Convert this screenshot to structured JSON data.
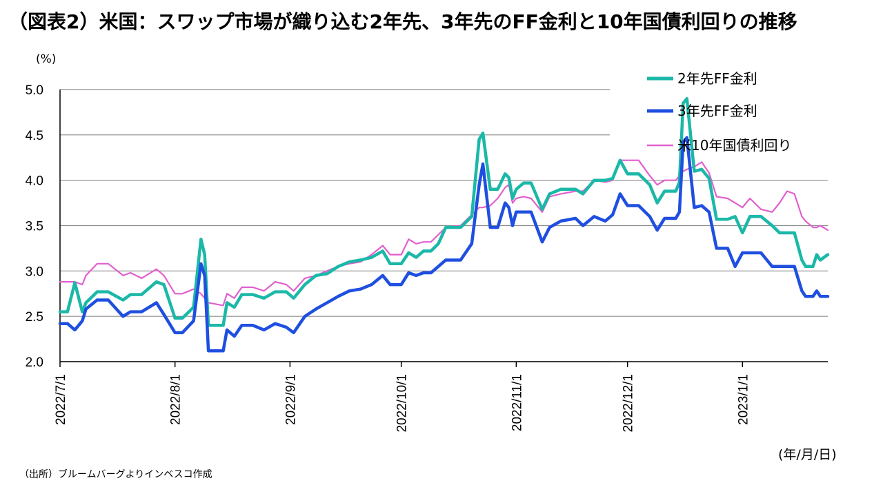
{
  "title": "（図表2）米国：スワップ市場が織り込む2年先、3年先のFF金利と10年国債利回りの推移",
  "y_unit": "(%)",
  "x_unit": "(年/月/日)",
  "source": "（出所）ブルームバーグよりインベスコ作成",
  "colors": {
    "series_2y": "#1bb8a8",
    "series_3y": "#1f4fe0",
    "series_10y": "#e25fcf",
    "grid": "#8c8c8c",
    "axis": "#000000"
  },
  "chart_data": {
    "type": "line",
    "x_start": "2022-07-01",
    "x_end": "2023-01-24",
    "ylim": [
      2.0,
      5.0
    ],
    "yticks": [
      "2.0",
      "2.5",
      "3.0",
      "3.5",
      "4.0",
      "4.5",
      "5.0"
    ],
    "xtick_labels": [
      "2022/7/1",
      "2022/8/1",
      "2022/9/1",
      "2022/10/1",
      "2022/11/1",
      "2022/12/1",
      "2023/1/1"
    ],
    "xticks": [
      "2022-07-01",
      "2022-08-01",
      "2022-09-01",
      "2022-10-01",
      "2022-11-01",
      "2022-12-01",
      "2023-01-01"
    ],
    "grid": true,
    "legend_position": "top-right",
    "series": [
      {
        "name": "2年先FF金利",
        "points": [
          [
            "2022-07-01",
            2.55
          ],
          [
            "2022-07-03",
            2.55
          ],
          [
            "2022-07-05",
            2.87
          ],
          [
            "2022-07-07",
            2.55
          ],
          [
            "2022-07-08",
            2.65
          ],
          [
            "2022-07-11",
            2.77
          ],
          [
            "2022-07-14",
            2.77
          ],
          [
            "2022-07-18",
            2.68
          ],
          [
            "2022-07-20",
            2.74
          ],
          [
            "2022-07-23",
            2.74
          ],
          [
            "2022-07-27",
            2.88
          ],
          [
            "2022-07-29",
            2.85
          ],
          [
            "2022-08-01",
            2.48
          ],
          [
            "2022-08-03",
            2.48
          ],
          [
            "2022-08-06",
            2.6
          ],
          [
            "2022-08-08",
            3.35
          ],
          [
            "2022-08-09",
            3.18
          ],
          [
            "2022-08-10",
            2.4
          ],
          [
            "2022-08-14",
            2.4
          ],
          [
            "2022-08-15",
            2.65
          ],
          [
            "2022-08-17",
            2.6
          ],
          [
            "2022-08-19",
            2.74
          ],
          [
            "2022-08-22",
            2.74
          ],
          [
            "2022-08-25",
            2.7
          ],
          [
            "2022-08-28",
            2.77
          ],
          [
            "2022-08-31",
            2.77
          ],
          [
            "2022-09-02",
            2.7
          ],
          [
            "2022-09-05",
            2.85
          ],
          [
            "2022-09-08",
            2.95
          ],
          [
            "2022-09-11",
            2.97
          ],
          [
            "2022-09-14",
            3.05
          ],
          [
            "2022-09-17",
            3.1
          ],
          [
            "2022-09-20",
            3.12
          ],
          [
            "2022-09-23",
            3.15
          ],
          [
            "2022-09-26",
            3.22
          ],
          [
            "2022-09-28",
            3.08
          ],
          [
            "2022-10-01",
            3.08
          ],
          [
            "2022-10-03",
            3.2
          ],
          [
            "2022-10-05",
            3.15
          ],
          [
            "2022-10-07",
            3.22
          ],
          [
            "2022-10-09",
            3.22
          ],
          [
            "2022-10-11",
            3.3
          ],
          [
            "2022-10-13",
            3.48
          ],
          [
            "2022-10-17",
            3.48
          ],
          [
            "2022-10-20",
            3.6
          ],
          [
            "2022-10-22",
            4.45
          ],
          [
            "2022-10-23",
            4.52
          ],
          [
            "2022-10-25",
            3.9
          ],
          [
            "2022-10-27",
            3.9
          ],
          [
            "2022-10-29",
            4.07
          ],
          [
            "2022-10-30",
            4.03
          ],
          [
            "2022-10-31",
            3.8
          ],
          [
            "2022-11-01",
            3.9
          ],
          [
            "2022-11-03",
            3.97
          ],
          [
            "2022-11-05",
            3.97
          ],
          [
            "2022-11-08",
            3.68
          ],
          [
            "2022-11-10",
            3.85
          ],
          [
            "2022-11-13",
            3.9
          ],
          [
            "2022-11-17",
            3.9
          ],
          [
            "2022-11-19",
            3.85
          ],
          [
            "2022-11-22",
            4.0
          ],
          [
            "2022-11-25",
            4.0
          ],
          [
            "2022-11-27",
            4.02
          ],
          [
            "2022-11-29",
            4.22
          ],
          [
            "2022-12-01",
            4.07
          ],
          [
            "2022-12-04",
            4.07
          ],
          [
            "2022-12-07",
            3.95
          ],
          [
            "2022-12-09",
            3.75
          ],
          [
            "2022-12-11",
            3.88
          ],
          [
            "2022-12-14",
            3.88
          ],
          [
            "2022-12-15",
            3.98
          ],
          [
            "2022-12-16",
            4.85
          ],
          [
            "2022-12-17",
            4.9
          ],
          [
            "2022-12-19",
            4.1
          ],
          [
            "2022-12-21",
            4.12
          ],
          [
            "2022-12-23",
            4.02
          ],
          [
            "2022-12-25",
            3.57
          ],
          [
            "2022-12-28",
            3.57
          ],
          [
            "2022-12-30",
            3.6
          ],
          [
            "2023-01-01",
            3.42
          ],
          [
            "2023-01-03",
            3.6
          ],
          [
            "2023-01-06",
            3.6
          ],
          [
            "2023-01-09",
            3.5
          ],
          [
            "2023-01-11",
            3.42
          ],
          [
            "2023-01-13",
            3.42
          ],
          [
            "2023-01-15",
            3.42
          ],
          [
            "2023-01-17",
            3.12
          ],
          [
            "2023-01-18",
            3.05
          ],
          [
            "2023-01-20",
            3.05
          ],
          [
            "2023-01-21",
            3.18
          ],
          [
            "2023-01-22",
            3.12
          ],
          [
            "2023-01-24",
            3.18
          ]
        ]
      },
      {
        "name": "3年先FF金利",
        "points": [
          [
            "2022-07-01",
            2.42
          ],
          [
            "2022-07-03",
            2.42
          ],
          [
            "2022-07-05",
            2.35
          ],
          [
            "2022-07-07",
            2.45
          ],
          [
            "2022-07-08",
            2.58
          ],
          [
            "2022-07-11",
            2.68
          ],
          [
            "2022-07-14",
            2.68
          ],
          [
            "2022-07-18",
            2.5
          ],
          [
            "2022-07-20",
            2.55
          ],
          [
            "2022-07-23",
            2.55
          ],
          [
            "2022-07-27",
            2.65
          ],
          [
            "2022-07-29",
            2.52
          ],
          [
            "2022-08-01",
            2.32
          ],
          [
            "2022-08-03",
            2.32
          ],
          [
            "2022-08-06",
            2.45
          ],
          [
            "2022-08-08",
            3.08
          ],
          [
            "2022-08-09",
            2.95
          ],
          [
            "2022-08-10",
            2.12
          ],
          [
            "2022-08-14",
            2.12
          ],
          [
            "2022-08-15",
            2.35
          ],
          [
            "2022-08-17",
            2.28
          ],
          [
            "2022-08-19",
            2.4
          ],
          [
            "2022-08-22",
            2.4
          ],
          [
            "2022-08-25",
            2.35
          ],
          [
            "2022-08-28",
            2.42
          ],
          [
            "2022-08-31",
            2.38
          ],
          [
            "2022-09-02",
            2.32
          ],
          [
            "2022-09-05",
            2.5
          ],
          [
            "2022-09-08",
            2.58
          ],
          [
            "2022-09-11",
            2.65
          ],
          [
            "2022-09-14",
            2.72
          ],
          [
            "2022-09-17",
            2.78
          ],
          [
            "2022-09-20",
            2.8
          ],
          [
            "2022-09-23",
            2.85
          ],
          [
            "2022-09-26",
            2.95
          ],
          [
            "2022-09-28",
            2.85
          ],
          [
            "2022-10-01",
            2.85
          ],
          [
            "2022-10-03",
            2.98
          ],
          [
            "2022-10-05",
            2.95
          ],
          [
            "2022-10-07",
            2.98
          ],
          [
            "2022-10-09",
            2.98
          ],
          [
            "2022-10-11",
            3.05
          ],
          [
            "2022-10-13",
            3.12
          ],
          [
            "2022-10-17",
            3.12
          ],
          [
            "2022-10-20",
            3.3
          ],
          [
            "2022-10-22",
            3.95
          ],
          [
            "2022-10-23",
            4.18
          ],
          [
            "2022-10-25",
            3.48
          ],
          [
            "2022-10-27",
            3.48
          ],
          [
            "2022-10-29",
            3.75
          ],
          [
            "2022-10-30",
            3.7
          ],
          [
            "2022-10-31",
            3.5
          ],
          [
            "2022-11-01",
            3.65
          ],
          [
            "2022-11-03",
            3.65
          ],
          [
            "2022-11-05",
            3.65
          ],
          [
            "2022-11-08",
            3.32
          ],
          [
            "2022-11-10",
            3.48
          ],
          [
            "2022-11-13",
            3.55
          ],
          [
            "2022-11-17",
            3.58
          ],
          [
            "2022-11-19",
            3.5
          ],
          [
            "2022-11-22",
            3.6
          ],
          [
            "2022-11-25",
            3.55
          ],
          [
            "2022-11-27",
            3.62
          ],
          [
            "2022-11-29",
            3.85
          ],
          [
            "2022-12-01",
            3.72
          ],
          [
            "2022-12-04",
            3.72
          ],
          [
            "2022-12-07",
            3.6
          ],
          [
            "2022-12-09",
            3.45
          ],
          [
            "2022-12-11",
            3.58
          ],
          [
            "2022-12-14",
            3.58
          ],
          [
            "2022-12-15",
            3.65
          ],
          [
            "2022-12-16",
            4.42
          ],
          [
            "2022-12-17",
            4.47
          ],
          [
            "2022-12-19",
            3.7
          ],
          [
            "2022-12-21",
            3.72
          ],
          [
            "2022-12-23",
            3.65
          ],
          [
            "2022-12-25",
            3.25
          ],
          [
            "2022-12-28",
            3.25
          ],
          [
            "2022-12-30",
            3.05
          ],
          [
            "2023-01-01",
            3.2
          ],
          [
            "2023-01-03",
            3.2
          ],
          [
            "2023-01-06",
            3.2
          ],
          [
            "2023-01-09",
            3.05
          ],
          [
            "2023-01-11",
            3.05
          ],
          [
            "2023-01-13",
            3.05
          ],
          [
            "2023-01-15",
            3.05
          ],
          [
            "2023-01-17",
            2.78
          ],
          [
            "2023-01-18",
            2.72
          ],
          [
            "2023-01-20",
            2.72
          ],
          [
            "2023-01-21",
            2.78
          ],
          [
            "2023-01-22",
            2.72
          ],
          [
            "2023-01-24",
            2.72
          ]
        ]
      },
      {
        "name": "米10年国債利回り",
        "points": [
          [
            "2022-07-01",
            2.88
          ],
          [
            "2022-07-03",
            2.88
          ],
          [
            "2022-07-05",
            2.88
          ],
          [
            "2022-07-07",
            2.85
          ],
          [
            "2022-07-08",
            2.95
          ],
          [
            "2022-07-11",
            3.08
          ],
          [
            "2022-07-14",
            3.08
          ],
          [
            "2022-07-18",
            2.95
          ],
          [
            "2022-07-20",
            2.98
          ],
          [
            "2022-07-23",
            2.92
          ],
          [
            "2022-07-27",
            3.02
          ],
          [
            "2022-07-29",
            2.95
          ],
          [
            "2022-08-01",
            2.75
          ],
          [
            "2022-08-03",
            2.75
          ],
          [
            "2022-08-06",
            2.8
          ],
          [
            "2022-08-08",
            2.75
          ],
          [
            "2022-08-09",
            2.7
          ],
          [
            "2022-08-10",
            2.65
          ],
          [
            "2022-08-14",
            2.62
          ],
          [
            "2022-08-15",
            2.75
          ],
          [
            "2022-08-17",
            2.7
          ],
          [
            "2022-08-19",
            2.82
          ],
          [
            "2022-08-22",
            2.82
          ],
          [
            "2022-08-25",
            2.78
          ],
          [
            "2022-08-28",
            2.88
          ],
          [
            "2022-08-31",
            2.85
          ],
          [
            "2022-09-02",
            2.78
          ],
          [
            "2022-09-05",
            2.92
          ],
          [
            "2022-09-08",
            2.95
          ],
          [
            "2022-09-11",
            3.0
          ],
          [
            "2022-09-14",
            3.05
          ],
          [
            "2022-09-17",
            3.08
          ],
          [
            "2022-09-20",
            3.1
          ],
          [
            "2022-09-23",
            3.18
          ],
          [
            "2022-09-26",
            3.28
          ],
          [
            "2022-09-28",
            3.18
          ],
          [
            "2022-10-01",
            3.18
          ],
          [
            "2022-10-03",
            3.35
          ],
          [
            "2022-10-05",
            3.3
          ],
          [
            "2022-10-07",
            3.32
          ],
          [
            "2022-10-09",
            3.32
          ],
          [
            "2022-10-11",
            3.4
          ],
          [
            "2022-10-13",
            3.48
          ],
          [
            "2022-10-17",
            3.5
          ],
          [
            "2022-10-20",
            3.62
          ],
          [
            "2022-10-22",
            3.7
          ],
          [
            "2022-10-23",
            3.7
          ],
          [
            "2022-10-25",
            3.72
          ],
          [
            "2022-10-27",
            3.8
          ],
          [
            "2022-10-29",
            3.92
          ],
          [
            "2022-10-30",
            3.95
          ],
          [
            "2022-10-31",
            3.75
          ],
          [
            "2022-11-01",
            3.8
          ],
          [
            "2022-11-03",
            3.82
          ],
          [
            "2022-11-05",
            3.8
          ],
          [
            "2022-11-08",
            3.65
          ],
          [
            "2022-11-10",
            3.82
          ],
          [
            "2022-11-13",
            3.85
          ],
          [
            "2022-11-17",
            3.88
          ],
          [
            "2022-11-19",
            3.88
          ],
          [
            "2022-11-22",
            4.0
          ],
          [
            "2022-11-25",
            3.98
          ],
          [
            "2022-11-27",
            4.0
          ],
          [
            "2022-11-29",
            4.22
          ],
          [
            "2022-12-01",
            4.22
          ],
          [
            "2022-12-04",
            4.22
          ],
          [
            "2022-12-07",
            4.05
          ],
          [
            "2022-12-09",
            3.95
          ],
          [
            "2022-12-11",
            4.0
          ],
          [
            "2022-12-14",
            4.0
          ],
          [
            "2022-12-15",
            4.05
          ],
          [
            "2022-12-16",
            4.1
          ],
          [
            "2022-12-17",
            4.12
          ],
          [
            "2022-12-19",
            4.15
          ],
          [
            "2022-12-21",
            4.2
          ],
          [
            "2022-12-23",
            4.08
          ],
          [
            "2022-12-25",
            3.82
          ],
          [
            "2022-12-28",
            3.8
          ],
          [
            "2022-12-30",
            3.75
          ],
          [
            "2023-01-01",
            3.7
          ],
          [
            "2023-01-03",
            3.8
          ],
          [
            "2023-01-06",
            3.68
          ],
          [
            "2023-01-09",
            3.65
          ],
          [
            "2023-01-11",
            3.75
          ],
          [
            "2023-01-13",
            3.88
          ],
          [
            "2023-01-15",
            3.85
          ],
          [
            "2023-01-17",
            3.6
          ],
          [
            "2023-01-18",
            3.55
          ],
          [
            "2023-01-20",
            3.48
          ],
          [
            "2023-01-21",
            3.48
          ],
          [
            "2023-01-22",
            3.5
          ],
          [
            "2023-01-24",
            3.45
          ]
        ]
      }
    ]
  }
}
